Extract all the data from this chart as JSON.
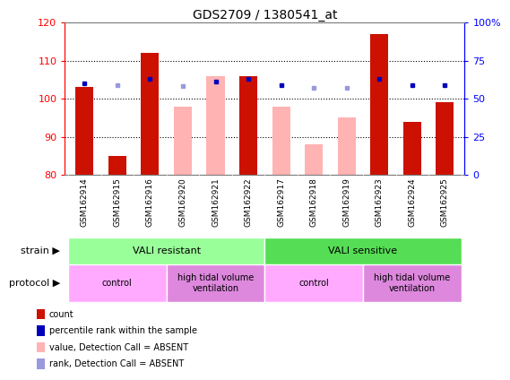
{
  "title": "GDS2709 / 1380541_at",
  "samples": [
    "GSM162914",
    "GSM162915",
    "GSM162916",
    "GSM162920",
    "GSM162921",
    "GSM162922",
    "GSM162917",
    "GSM162918",
    "GSM162919",
    "GSM162923",
    "GSM162924",
    "GSM162925"
  ],
  "count_values": [
    103,
    85,
    112,
    null,
    null,
    106,
    null,
    null,
    null,
    117,
    94,
    99
  ],
  "count_absent": [
    null,
    null,
    null,
    98,
    106,
    null,
    98,
    88,
    95,
    null,
    null,
    null
  ],
  "rank_present": [
    60,
    null,
    63,
    null,
    61,
    63,
    59,
    null,
    null,
    63,
    59,
    59
  ],
  "rank_absent": [
    null,
    59,
    null,
    58,
    null,
    null,
    null,
    57,
    57,
    null,
    null,
    null
  ],
  "ylim": [
    80,
    120
  ],
  "yticks": [
    80,
    90,
    100,
    110,
    120
  ],
  "right_ytick_pcts": [
    0,
    25,
    50,
    75,
    100
  ],
  "right_yticklabels": [
    "0",
    "25",
    "50",
    "75",
    "100%"
  ],
  "bar_color_present": "#cc1100",
  "bar_color_absent": "#ffb3b3",
  "rank_color_present": "#0000bb",
  "rank_color_absent": "#9999dd",
  "strain_groups": [
    {
      "label": "VALI resistant",
      "start": 0,
      "end": 6,
      "color": "#99ff99"
    },
    {
      "label": "VALI sensitive",
      "start": 6,
      "end": 12,
      "color": "#55dd55"
    }
  ],
  "protocol_groups": [
    {
      "label": "control",
      "start": 0,
      "end": 3,
      "color": "#ffaaff"
    },
    {
      "label": "high tidal volume\nventilation",
      "start": 3,
      "end": 6,
      "color": "#dd88dd"
    },
    {
      "label": "control",
      "start": 6,
      "end": 9,
      "color": "#ffaaff"
    },
    {
      "label": "high tidal volume\nventilation",
      "start": 9,
      "end": 12,
      "color": "#dd88dd"
    }
  ],
  "legend_items": [
    {
      "label": "count",
      "color": "#cc1100"
    },
    {
      "label": "percentile rank within the sample",
      "color": "#0000bb"
    },
    {
      "label": "value, Detection Call = ABSENT",
      "color": "#ffb3b3"
    },
    {
      "label": "rank, Detection Call = ABSENT",
      "color": "#9999dd"
    }
  ],
  "strain_label": "strain",
  "protocol_label": "protocol",
  "gridline_yticks": [
    90,
    100,
    110
  ]
}
